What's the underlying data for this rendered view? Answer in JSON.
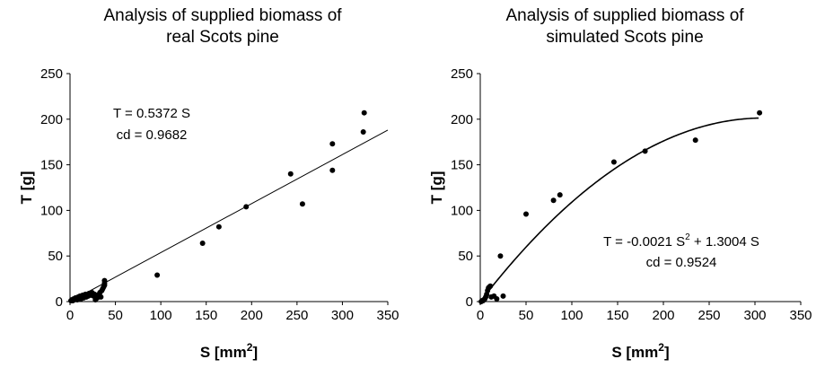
{
  "chart_data": [
    {
      "type": "scatter",
      "title_lines": [
        "Analysis of supplied biomass of",
        "real Scots pine"
      ],
      "xlabel": "S [mm",
      "xlabel_sup": "2",
      "xlabel_end": "]",
      "ylabel": "T [g]",
      "xlim": [
        0,
        350
      ],
      "ylim": [
        0,
        250
      ],
      "xticks": [
        0,
        50,
        100,
        150,
        200,
        250,
        300,
        350
      ],
      "yticks": [
        0,
        50,
        100,
        150,
        200,
        250
      ],
      "grid": false,
      "fit": {
        "kind": "linear",
        "a": 0.5372,
        "x_range": [
          0,
          350
        ]
      },
      "annotation_lines": [
        "T = 0.5372 S",
        "cd = 0.9682"
      ],
      "x": [
        1,
        2,
        3,
        4,
        5,
        6,
        7,
        8,
        9,
        10,
        11,
        12,
        13,
        14,
        15,
        16,
        17,
        18,
        19,
        20,
        21,
        22,
        23,
        24,
        25,
        26,
        27,
        28,
        30,
        32,
        33,
        34,
        35,
        36,
        37,
        38,
        38,
        38,
        96,
        146,
        164,
        194,
        243,
        256,
        289,
        289,
        323,
        324
      ],
      "y": [
        1,
        2,
        1,
        3,
        2,
        4,
        3,
        2,
        5,
        4,
        6,
        3,
        5,
        7,
        4,
        6,
        8,
        5,
        7,
        6,
        9,
        8,
        7,
        10,
        9,
        6,
        8,
        2,
        4,
        8,
        10,
        5,
        12,
        14,
        16,
        18,
        20,
        23,
        29,
        64,
        82,
        104,
        140,
        107,
        144,
        173,
        186,
        207
      ]
    },
    {
      "type": "scatter",
      "title_lines": [
        "Analysis of supplied biomass of",
        "simulated Scots pine"
      ],
      "xlabel": "S [mm",
      "xlabel_sup": "2",
      "xlabel_end": "]",
      "ylabel": "T [g]",
      "xlim": [
        0,
        350
      ],
      "ylim": [
        0,
        250
      ],
      "xticks": [
        0,
        50,
        100,
        150,
        200,
        250,
        300,
        350
      ],
      "yticks": [
        0,
        50,
        100,
        150,
        200,
        250
      ],
      "grid": false,
      "fit": {
        "kind": "quadratic",
        "a": -0.0021,
        "b": 1.3004,
        "x_range": [
          0,
          305
        ]
      },
      "annotation_lines": [
        "T = -0.0021 S",
        "2",
        " + 1.3004 S",
        "cd = 0.9524"
      ],
      "x": [
        1,
        2,
        3,
        4,
        5,
        6,
        7,
        8,
        9,
        10,
        11,
        12,
        15,
        18,
        22,
        25,
        50,
        80,
        87,
        146,
        180,
        235,
        305
      ],
      "y": [
        0,
        1,
        1,
        2,
        3,
        5,
        8,
        12,
        15,
        16,
        17,
        5,
        6,
        3,
        50,
        6,
        96,
        111,
        117,
        153,
        165,
        177,
        207
      ]
    }
  ]
}
